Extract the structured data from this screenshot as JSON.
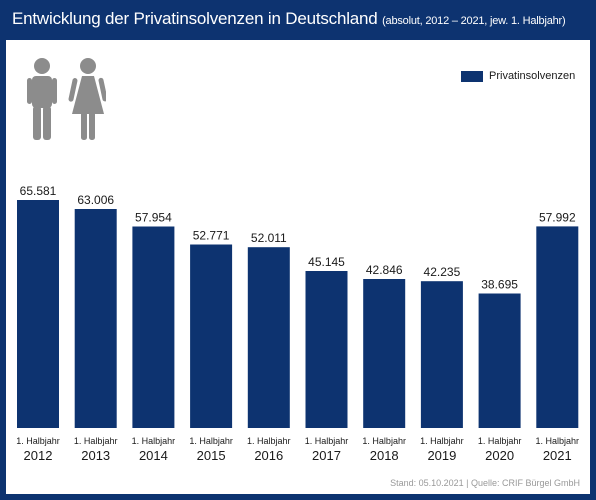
{
  "header": {
    "title": "Entwicklung der Privatinsolvenzen in Deutschland",
    "subtitle": "(absolut, 2012 – 2021, jew. 1. Halbjahr)"
  },
  "legend": {
    "label": "Privatinsolvenzen"
  },
  "source": "Stand: 05.10.2021 | Quelle: CRIF Bürgel GmbH",
  "icons": [
    "male-person-icon",
    "female-person-icon"
  ],
  "colors": {
    "frame": "#0d3370",
    "bar": "#0d3370",
    "icon": "#8c8c8c"
  },
  "chart_data": {
    "type": "bar",
    "title": "Entwicklung der Privatinsolvenzen in Deutschland",
    "subtitle": "(absolut, 2012 – 2021, jew. 1. Halbjahr)",
    "categories": [
      "2012",
      "2013",
      "2014",
      "2015",
      "2016",
      "2017",
      "2018",
      "2019",
      "2020",
      "2021"
    ],
    "category_prefix": "1. Halbjahr",
    "series": [
      {
        "name": "Privatinsolvenzen",
        "values": [
          65581,
          63006,
          57954,
          52771,
          52011,
          45145,
          42846,
          42235,
          38695,
          57992
        ],
        "labels": [
          "65.581",
          "63.006",
          "57.954",
          "52.771",
          "52.011",
          "45.145",
          "42.846",
          "42.235",
          "38.695",
          "57.992"
        ]
      }
    ],
    "ylim": [
      0,
      65581
    ],
    "grid": false,
    "legend_position": "top-right"
  }
}
